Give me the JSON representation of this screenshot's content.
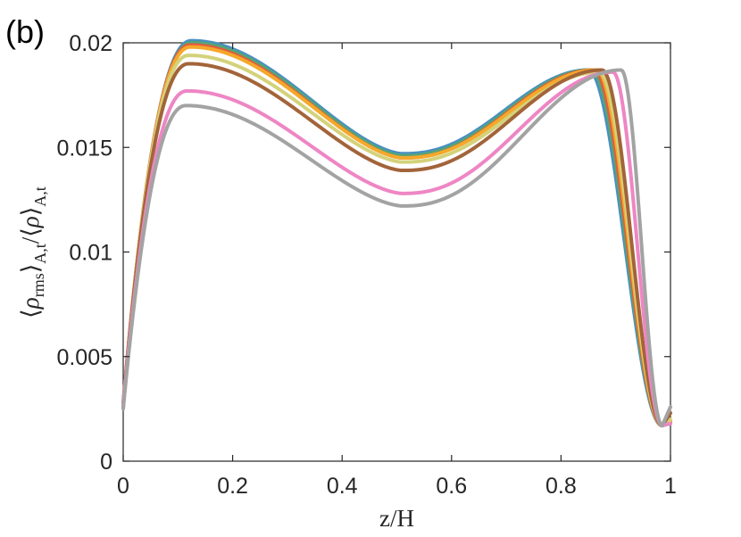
{
  "panel_label": "(b)",
  "chart_data": {
    "type": "line",
    "xlabel": "z/H",
    "ylabel_parts": {
      "lb1": "⟨",
      "rho1": "ρ",
      "sub1": "rms",
      "rb1": "⟩",
      "sub2": "A,t",
      "slash": "/⟨",
      "rho2": "ρ",
      "rb2": "⟩",
      "sub3": "A,t"
    },
    "xlim": [
      0,
      1
    ],
    "ylim": [
      0,
      0.02
    ],
    "xticks": [
      0,
      0.2,
      0.4,
      0.6,
      0.8,
      1
    ],
    "xtick_labels": [
      "0",
      "0.2",
      "0.4",
      "0.6",
      "0.8",
      "1"
    ],
    "yticks": [
      0,
      0.005,
      0.01,
      0.015,
      0.02
    ],
    "ytick_labels": [
      "0",
      "0.005",
      "0.01",
      "0.015",
      "0.02"
    ],
    "grid": false,
    "series": [
      {
        "color": "#4a8fc2",
        "peak1_x": 0.125,
        "peak1_y": 0.0201,
        "mid_y": 0.0147,
        "peak2_x": 0.85,
        "peak2_y": 0.0187,
        "ends": [
          0.0026,
          0.0019
        ]
      },
      {
        "color": "#53a677",
        "peak1_x": 0.125,
        "peak1_y": 0.02,
        "mid_y": 0.0146,
        "peak2_x": 0.855,
        "peak2_y": 0.0187,
        "ends": [
          0.0026,
          0.0018
        ]
      },
      {
        "color": "#e35c3e",
        "peak1_x": 0.123,
        "peak1_y": 0.0199,
        "mid_y": 0.0145,
        "peak2_x": 0.86,
        "peak2_y": 0.0187,
        "ends": [
          0.0027,
          0.0019
        ]
      },
      {
        "color": "#f5a82a",
        "peak1_x": 0.123,
        "peak1_y": 0.0198,
        "mid_y": 0.0145,
        "peak2_x": 0.865,
        "peak2_y": 0.0187,
        "ends": [
          0.0027,
          0.0019
        ]
      },
      {
        "color": "#d4d27a",
        "peak1_x": 0.12,
        "peak1_y": 0.0194,
        "mid_y": 0.0143,
        "peak2_x": 0.87,
        "peak2_y": 0.0186,
        "ends": [
          0.0027,
          0.002
        ]
      },
      {
        "color": "#a3643a",
        "peak1_x": 0.12,
        "peak1_y": 0.019,
        "mid_y": 0.0139,
        "peak2_x": 0.875,
        "peak2_y": 0.0187,
        "ends": [
          0.0028,
          0.0023
        ]
      },
      {
        "color": "#ee86c4",
        "peak1_x": 0.117,
        "peak1_y": 0.0177,
        "mid_y": 0.0128,
        "peak2_x": 0.895,
        "peak2_y": 0.0186,
        "ends": [
          0.0027,
          0.0018
        ]
      },
      {
        "color": "#a3a3a3",
        "peak1_x": 0.115,
        "peak1_y": 0.017,
        "mid_y": 0.0122,
        "peak2_x": 0.91,
        "peak2_y": 0.0187,
        "ends": [
          0.0025,
          0.0026
        ]
      }
    ]
  }
}
